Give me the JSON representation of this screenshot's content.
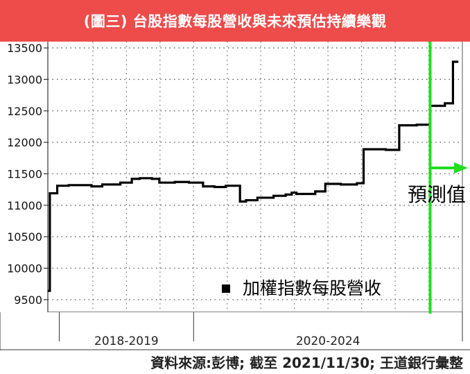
{
  "header": {
    "title": "(圖三) 台股指數每股營收與未來預估持續樂觀",
    "background": "#ee4b4b"
  },
  "source_note": "資料來源:彭博; 截至 2021/11/30; 王道銀行彙整",
  "chart_data": {
    "type": "line",
    "title": "",
    "xlabel": "",
    "ylabel": "",
    "ylim": [
      9300,
      13600
    ],
    "yticks": [
      9500,
      10000,
      10500,
      11000,
      11500,
      12000,
      12500,
      13000,
      13500
    ],
    "grid": "dotted",
    "periods": [
      {
        "label": "2018-2019",
        "start": 2018.0,
        "end": 2020.0
      },
      {
        "label": "2020-2024",
        "start": 2020.0,
        "end": 2024.0
      }
    ],
    "xlim": [
      2017.83,
      2024.0
    ],
    "series": [
      {
        "name": "加權指數每股營收",
        "color": "#000000",
        "step": true,
        "x": [
          2017.83,
          2017.86,
          2017.97,
          2018.14,
          2018.48,
          2018.64,
          2018.91,
          2019.08,
          2019.2,
          2019.38,
          2019.49,
          2019.72,
          2019.93,
          2020.14,
          2020.31,
          2020.48,
          2020.69,
          2020.78,
          2020.95,
          2021.19,
          2021.37,
          2021.46,
          2021.53,
          2021.81,
          2021.96,
          2022.19,
          2022.43,
          2022.53,
          2022.86,
          2023.06,
          2023.32,
          2023.52,
          2023.74,
          2023.86
        ],
        "values": [
          9640,
          11190,
          11310,
          11320,
          11300,
          11330,
          11360,
          11420,
          11430,
          11420,
          11360,
          11370,
          11360,
          11300,
          11290,
          11310,
          11060,
          11080,
          11120,
          11150,
          11170,
          11200,
          11180,
          11220,
          11340,
          11330,
          11350,
          11890,
          11880,
          12270,
          12280,
          12580,
          12620,
          13280
        ]
      }
    ],
    "forecast": {
      "start": 2023.52,
      "label": "預測值",
      "color": "#22dd22"
    },
    "legend": {
      "label": "加權指數每股營收",
      "placement": "bottom-center"
    }
  }
}
